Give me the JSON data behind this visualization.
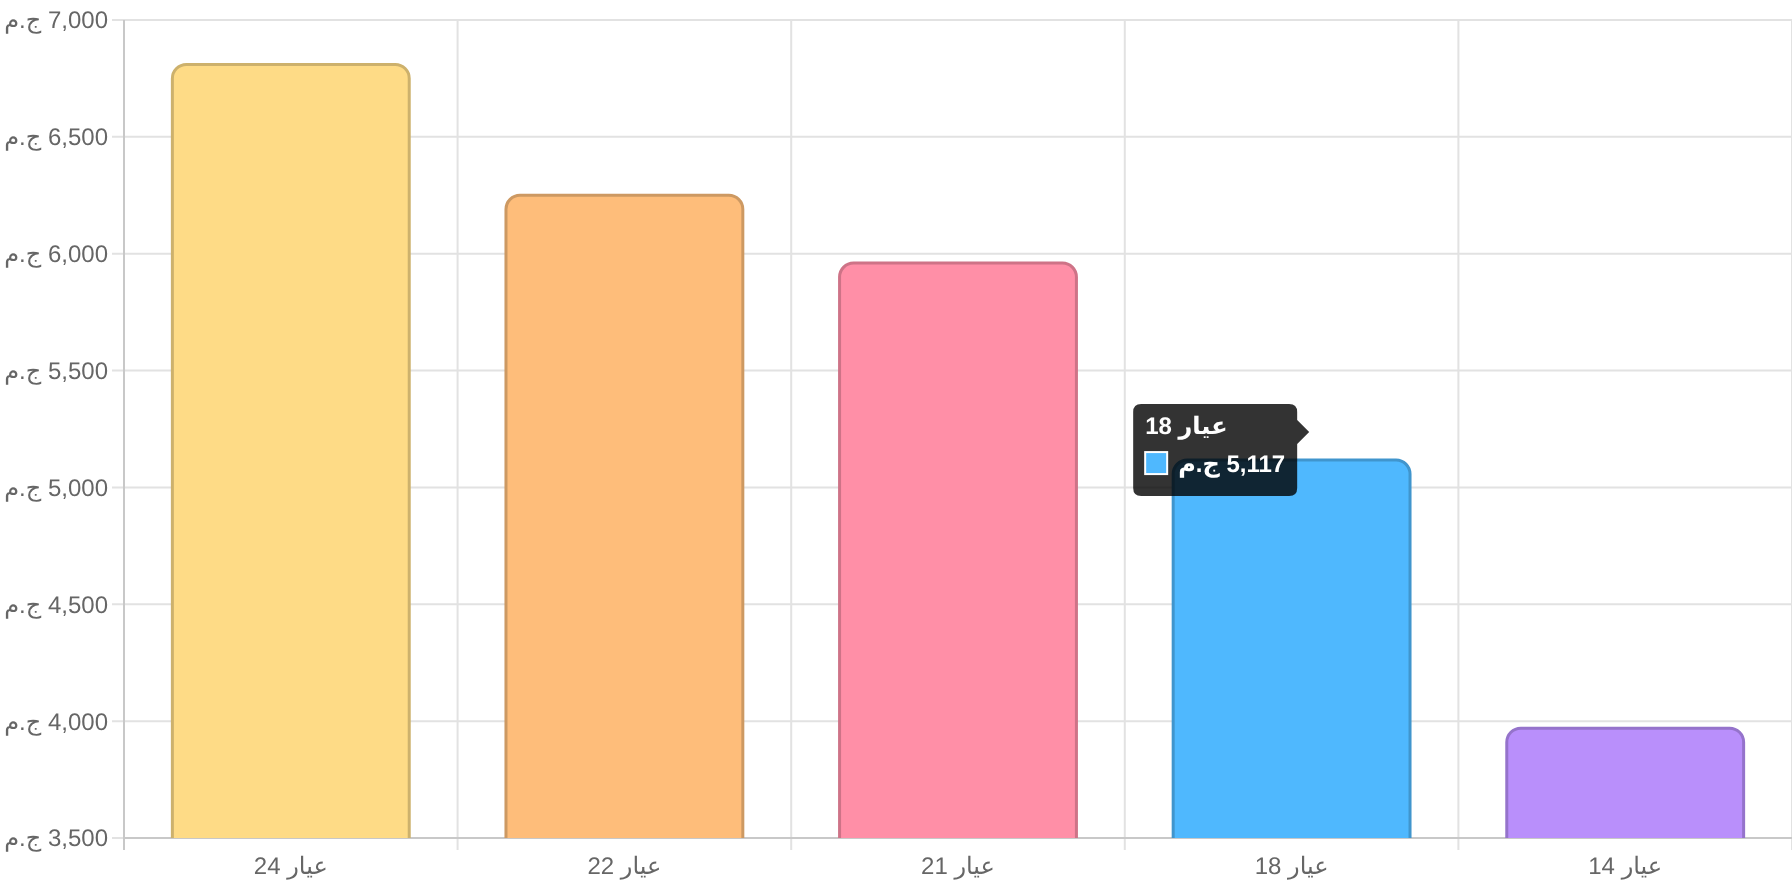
{
  "chart_data": {
    "type": "bar",
    "categories": [
      "عيار 24",
      "عيار 22",
      "عيار 21",
      "عيار 18",
      "عيار 14"
    ],
    "values": [
      6810,
      6250,
      5960,
      5117,
      3970
    ],
    "colors": [
      "#fedb86",
      "#febd7a",
      "#ff8fa7",
      "#4fb8fe",
      "#b98ffb"
    ],
    "value_labels": [
      null,
      null,
      null,
      "5,117 ج.م",
      null
    ],
    "annotations": [
      "عيار 18"
    ],
    "ylim": [
      3500,
      7000
    ],
    "yticks": [
      {
        "value": 3500,
        "label": "3,500 ج.م"
      },
      {
        "value": 4000,
        "label": "4,000 ج.م"
      },
      {
        "value": 4500,
        "label": "4,500 ج.م"
      },
      {
        "value": 5000,
        "label": "5,000 ج.م"
      },
      {
        "value": 5500,
        "label": "5,500 ج.م"
      },
      {
        "value": 6000,
        "label": "6,000 ج.م"
      },
      {
        "value": 6500,
        "label": "6,500 ج.م"
      },
      {
        "value": 7000,
        "label": "7,000 ج.م"
      }
    ],
    "grid": true
  }
}
